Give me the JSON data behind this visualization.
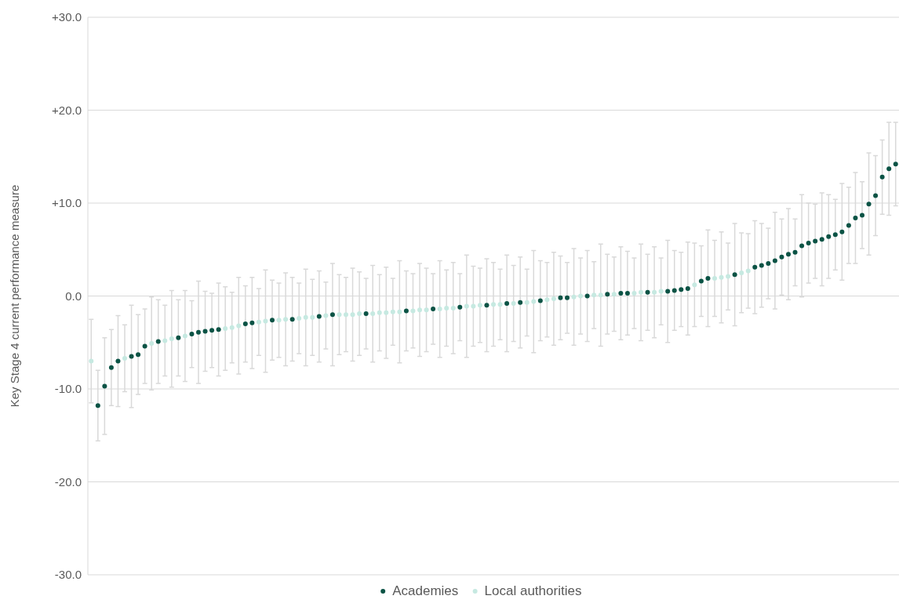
{
  "chart_data": {
    "type": "scatter",
    "ylabel": "Key Stage 4 current performance measure",
    "categories": [
      null,
      null,
      null,
      null,
      null,
      null,
      null,
      null,
      null,
      null,
      null,
      null,
      null,
      null,
      null,
      null,
      null,
      null,
      null,
      null,
      null,
      null,
      null,
      null,
      null,
      null,
      null,
      null,
      null,
      null,
      null,
      null,
      null,
      null,
      null,
      null,
      null,
      null,
      null,
      null,
      null,
      null,
      null,
      null,
      null,
      null,
      null,
      null,
      null,
      null,
      null,
      null,
      null,
      null,
      null,
      null,
      null,
      null,
      null,
      null,
      null,
      null,
      null,
      null,
      null,
      null,
      null,
      null,
      null,
      null,
      null,
      null,
      null,
      null,
      null,
      null,
      null,
      null,
      null,
      null,
      null,
      null,
      null,
      null,
      null,
      null,
      null,
      null,
      null,
      null,
      null,
      null,
      null,
      null,
      null,
      null,
      null,
      null,
      null,
      null,
      null,
      null,
      null,
      null,
      null,
      null,
      null,
      null,
      null,
      null,
      null,
      null,
      null,
      null,
      null,
      null,
      null,
      null,
      null,
      null,
      null
    ],
    "ylim": [
      -30,
      30
    ],
    "yticks": [
      {
        "value": -30,
        "label": "-30.0"
      },
      {
        "value": -20,
        "label": "-20.0"
      },
      {
        "value": -10,
        "label": "-10.0"
      },
      {
        "value": 0,
        "label": "0.0"
      },
      {
        "value": 10,
        "label": "+10.0"
      },
      {
        "value": 20,
        "label": "+20.0"
      },
      {
        "value": 30,
        "label": "+30.0"
      }
    ],
    "grid": "y",
    "legend": "bottom",
    "marker": "circle",
    "tick_labels": "y",
    "series": [
      {
        "name": "Academies",
        "color": "#0b5345",
        "values": [
          null,
          -11.8,
          -9.7,
          -7.7,
          -7.0,
          null,
          -6.5,
          -6.3,
          -5.4,
          null,
          -4.9,
          null,
          null,
          -4.5,
          null,
          -4.1,
          -3.9,
          -3.8,
          -3.7,
          -3.6,
          null,
          null,
          null,
          -3.0,
          -2.9,
          null,
          null,
          -2.6,
          null,
          null,
          -2.5,
          null,
          null,
          null,
          -2.2,
          null,
          -2.0,
          null,
          null,
          null,
          null,
          -1.9,
          null,
          null,
          null,
          null,
          null,
          -1.6,
          null,
          null,
          null,
          -1.4,
          null,
          null,
          null,
          -1.2,
          null,
          null,
          null,
          -1.0,
          null,
          null,
          -0.8,
          null,
          -0.7,
          null,
          null,
          -0.5,
          null,
          null,
          -0.2,
          -0.2,
          null,
          null,
          0.0,
          null,
          null,
          0.2,
          null,
          0.3,
          0.3,
          null,
          null,
          0.4,
          null,
          null,
          0.5,
          0.6,
          0.7,
          0.8,
          null,
          1.6,
          1.9,
          null,
          null,
          null,
          2.3,
          null,
          null,
          3.1,
          3.3,
          3.5,
          3.8,
          4.2,
          4.5,
          4.7,
          5.4,
          5.7,
          5.9,
          6.1,
          6.4,
          6.6,
          6.9,
          7.6,
          8.4,
          8.7,
          9.9,
          10.8,
          12.8,
          13.7,
          14.2
        ],
        "errors": [
          null,
          3.8,
          5.2,
          4.1,
          4.9,
          null,
          5.5,
          4.3,
          4.0,
          null,
          4.5,
          null,
          null,
          4.1,
          null,
          3.6,
          5.5,
          4.3,
          4.0,
          5.0,
          null,
          null,
          null,
          4.1,
          4.9,
          null,
          null,
          4.3,
          null,
          null,
          4.5,
          null,
          null,
          null,
          4.9,
          null,
          5.5,
          null,
          null,
          null,
          null,
          3.8,
          null,
          null,
          null,
          null,
          null,
          4.3,
          null,
          null,
          null,
          3.8,
          null,
          null,
          null,
          3.6,
          null,
          null,
          null,
          5.0,
          null,
          null,
          5.2,
          null,
          4.9,
          null,
          null,
          4.3,
          null,
          null,
          4.5,
          3.8,
          null,
          null,
          4.9,
          null,
          null,
          4.3,
          null,
          5.0,
          4.5,
          null,
          null,
          4.1,
          null,
          null,
          5.5,
          4.3,
          4.0,
          5.0,
          null,
          3.8,
          5.2,
          null,
          null,
          null,
          5.5,
          null,
          null,
          5.0,
          4.5,
          3.8,
          5.2,
          4.1,
          4.9,
          3.6,
          5.5,
          4.3,
          4.0,
          5.0,
          4.5,
          3.8,
          5.2,
          4.1,
          4.9,
          3.6,
          5.5,
          4.3,
          4.0,
          5.0,
          4.5
        ]
      },
      {
        "name": "Local authorities",
        "color": "#c6e9e1",
        "values": [
          -7.0,
          null,
          null,
          null,
          null,
          -6.7,
          null,
          null,
          null,
          -5.1,
          null,
          -4.8,
          -4.6,
          null,
          -4.3,
          null,
          null,
          null,
          null,
          null,
          -3.5,
          -3.4,
          -3.2,
          null,
          null,
          -2.8,
          -2.7,
          null,
          -2.6,
          -2.5,
          null,
          -2.4,
          -2.3,
          -2.3,
          null,
          -2.1,
          null,
          -2.0,
          -2.0,
          -2.0,
          -1.9,
          null,
          -1.9,
          -1.8,
          -1.8,
          -1.7,
          -1.7,
          null,
          -1.6,
          -1.5,
          -1.5,
          null,
          -1.4,
          -1.3,
          -1.3,
          null,
          -1.1,
          -1.1,
          -1.0,
          null,
          -0.9,
          -0.9,
          null,
          -0.8,
          null,
          -0.7,
          -0.6,
          null,
          -0.4,
          -0.3,
          null,
          null,
          -0.1,
          0.0,
          null,
          0.1,
          0.1,
          null,
          0.2,
          null,
          null,
          0.3,
          0.4,
          null,
          0.4,
          0.5,
          null,
          null,
          null,
          null,
          1.2,
          null,
          null,
          1.9,
          2.0,
          2.1,
          null,
          2.5,
          2.7,
          null,
          null,
          null,
          null,
          null,
          null,
          null,
          null,
          null,
          null,
          null,
          null,
          null,
          null,
          null,
          null,
          null,
          null,
          null,
          null,
          null,
          null
        ],
        "errors": [
          4.5,
          null,
          null,
          null,
          null,
          3.6,
          null,
          null,
          null,
          5.0,
          null,
          3.8,
          5.2,
          null,
          4.9,
          null,
          null,
          null,
          null,
          null,
          4.5,
          3.8,
          5.2,
          null,
          null,
          3.6,
          5.5,
          null,
          4.0,
          5.0,
          null,
          3.8,
          5.2,
          4.1,
          null,
          3.6,
          null,
          4.3,
          4.0,
          5.0,
          4.5,
          null,
          5.2,
          4.1,
          4.9,
          3.6,
          5.5,
          null,
          4.0,
          5.0,
          4.5,
          null,
          5.2,
          4.1,
          4.9,
          null,
          5.5,
          4.3,
          4.0,
          null,
          4.5,
          3.8,
          null,
          4.1,
          null,
          3.6,
          5.5,
          null,
          4.0,
          5.0,
          null,
          null,
          5.2,
          4.1,
          null,
          3.6,
          5.5,
          null,
          4.0,
          null,
          null,
          3.8,
          5.2,
          null,
          4.9,
          3.6,
          null,
          null,
          null,
          null,
          4.5,
          null,
          null,
          4.1,
          4.9,
          3.6,
          null,
          4.3,
          4.0,
          null,
          null,
          null,
          null,
          null,
          null,
          null,
          null,
          null,
          null,
          null,
          null,
          null,
          null,
          null,
          null,
          null,
          null,
          null,
          null,
          null,
          null
        ]
      }
    ]
  }
}
